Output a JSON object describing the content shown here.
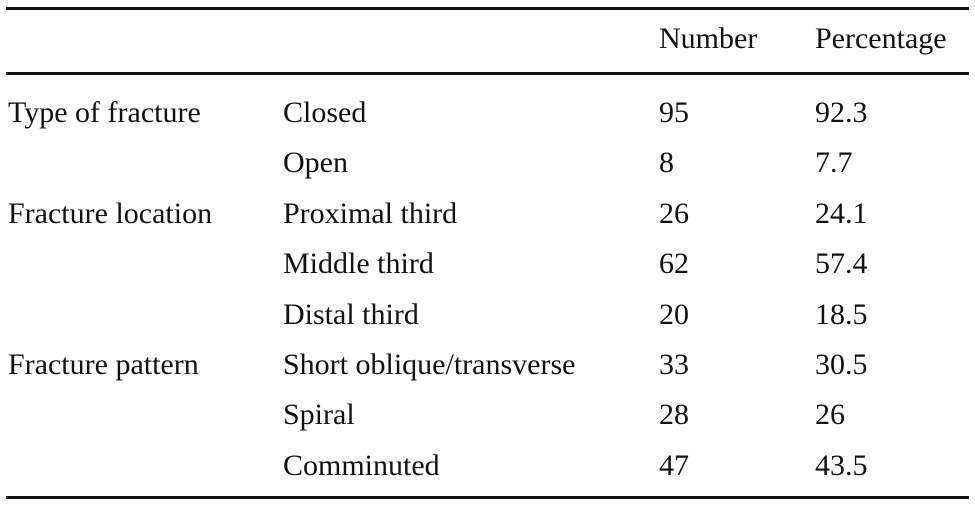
{
  "table": {
    "header": [
      "Number",
      "Percentage"
    ],
    "groups": [
      {
        "label": "Type of fracture",
        "rows": [
          [
            "Closed",
            "95",
            "92.3"
          ],
          [
            "Open",
            "8",
            "7.7"
          ]
        ]
      },
      {
        "label": "Fracture location",
        "rows": [
          [
            "Proximal third",
            "26",
            "24.1"
          ],
          [
            "Middle third",
            "62",
            "57.4"
          ],
          [
            "Distal third",
            "20",
            "18.5"
          ]
        ]
      },
      {
        "label": "Fracture pattern",
        "rows": [
          [
            "Short oblique/transverse",
            "33",
            "30.5"
          ],
          [
            "Spiral",
            "28",
            "26"
          ],
          [
            "Comminuted",
            "47",
            "43.5"
          ]
        ]
      }
    ]
  }
}
